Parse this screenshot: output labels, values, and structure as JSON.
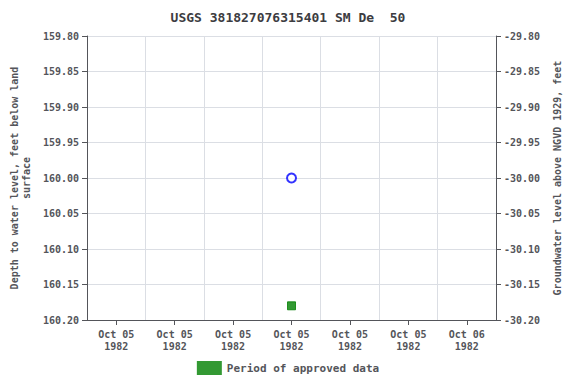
{
  "chart_data": {
    "type": "scatter",
    "title": "USGS 381827076315401 SM De  50",
    "ylabel": "Depth to water level, feet below land\nsurface",
    "y2label": "Groundwater level above NGVD 1929, feet",
    "categories": [
      "Oct 05\n1982",
      "Oct 05\n1982",
      "Oct 05\n1982",
      "Oct 05\n1982",
      "Oct 05\n1982",
      "Oct 05\n1982",
      "Oct 06\n1982"
    ],
    "series": [
      {
        "values": [
          null,
          null,
          null,
          160.0,
          null,
          null,
          null
        ],
        "color": "#0000ff",
        "marker": "open_circle"
      },
      {
        "name": "Period of approved data",
        "values": [
          null,
          null,
          null,
          160.18,
          null,
          null,
          null
        ],
        "color": "#008000",
        "marker": "square"
      }
    ],
    "ylim": [
      160.2,
      159.8
    ],
    "yticks": [
      {
        "value": 159.8,
        "label": "159.80"
      },
      {
        "value": 159.85,
        "label": "159.85"
      },
      {
        "value": 159.9,
        "label": "159.90"
      },
      {
        "value": 159.95,
        "label": "159.95"
      },
      {
        "value": 160.0,
        "label": "160.00"
      },
      {
        "value": 160.05,
        "label": "160.05"
      },
      {
        "value": 160.1,
        "label": "160.10"
      },
      {
        "value": 160.15,
        "label": "160.15"
      },
      {
        "value": 160.2,
        "label": "160.20"
      }
    ],
    "y2lim": [
      -30.2,
      -29.8
    ],
    "y2ticks": [
      {
        "value": -29.8,
        "label": "-29.80"
      },
      {
        "value": -29.85,
        "label": "-29.85"
      },
      {
        "value": -29.9,
        "label": "-29.90"
      },
      {
        "value": -29.95,
        "label": "-29.95"
      },
      {
        "value": -30.0,
        "label": "-30.00"
      },
      {
        "value": -30.05,
        "label": "-30.05"
      },
      {
        "value": -30.1,
        "label": "-30.10"
      },
      {
        "value": -30.15,
        "label": "-30.15"
      },
      {
        "value": -30.2,
        "label": "-30.20"
      }
    ],
    "grid": true,
    "legend": "bottom"
  }
}
